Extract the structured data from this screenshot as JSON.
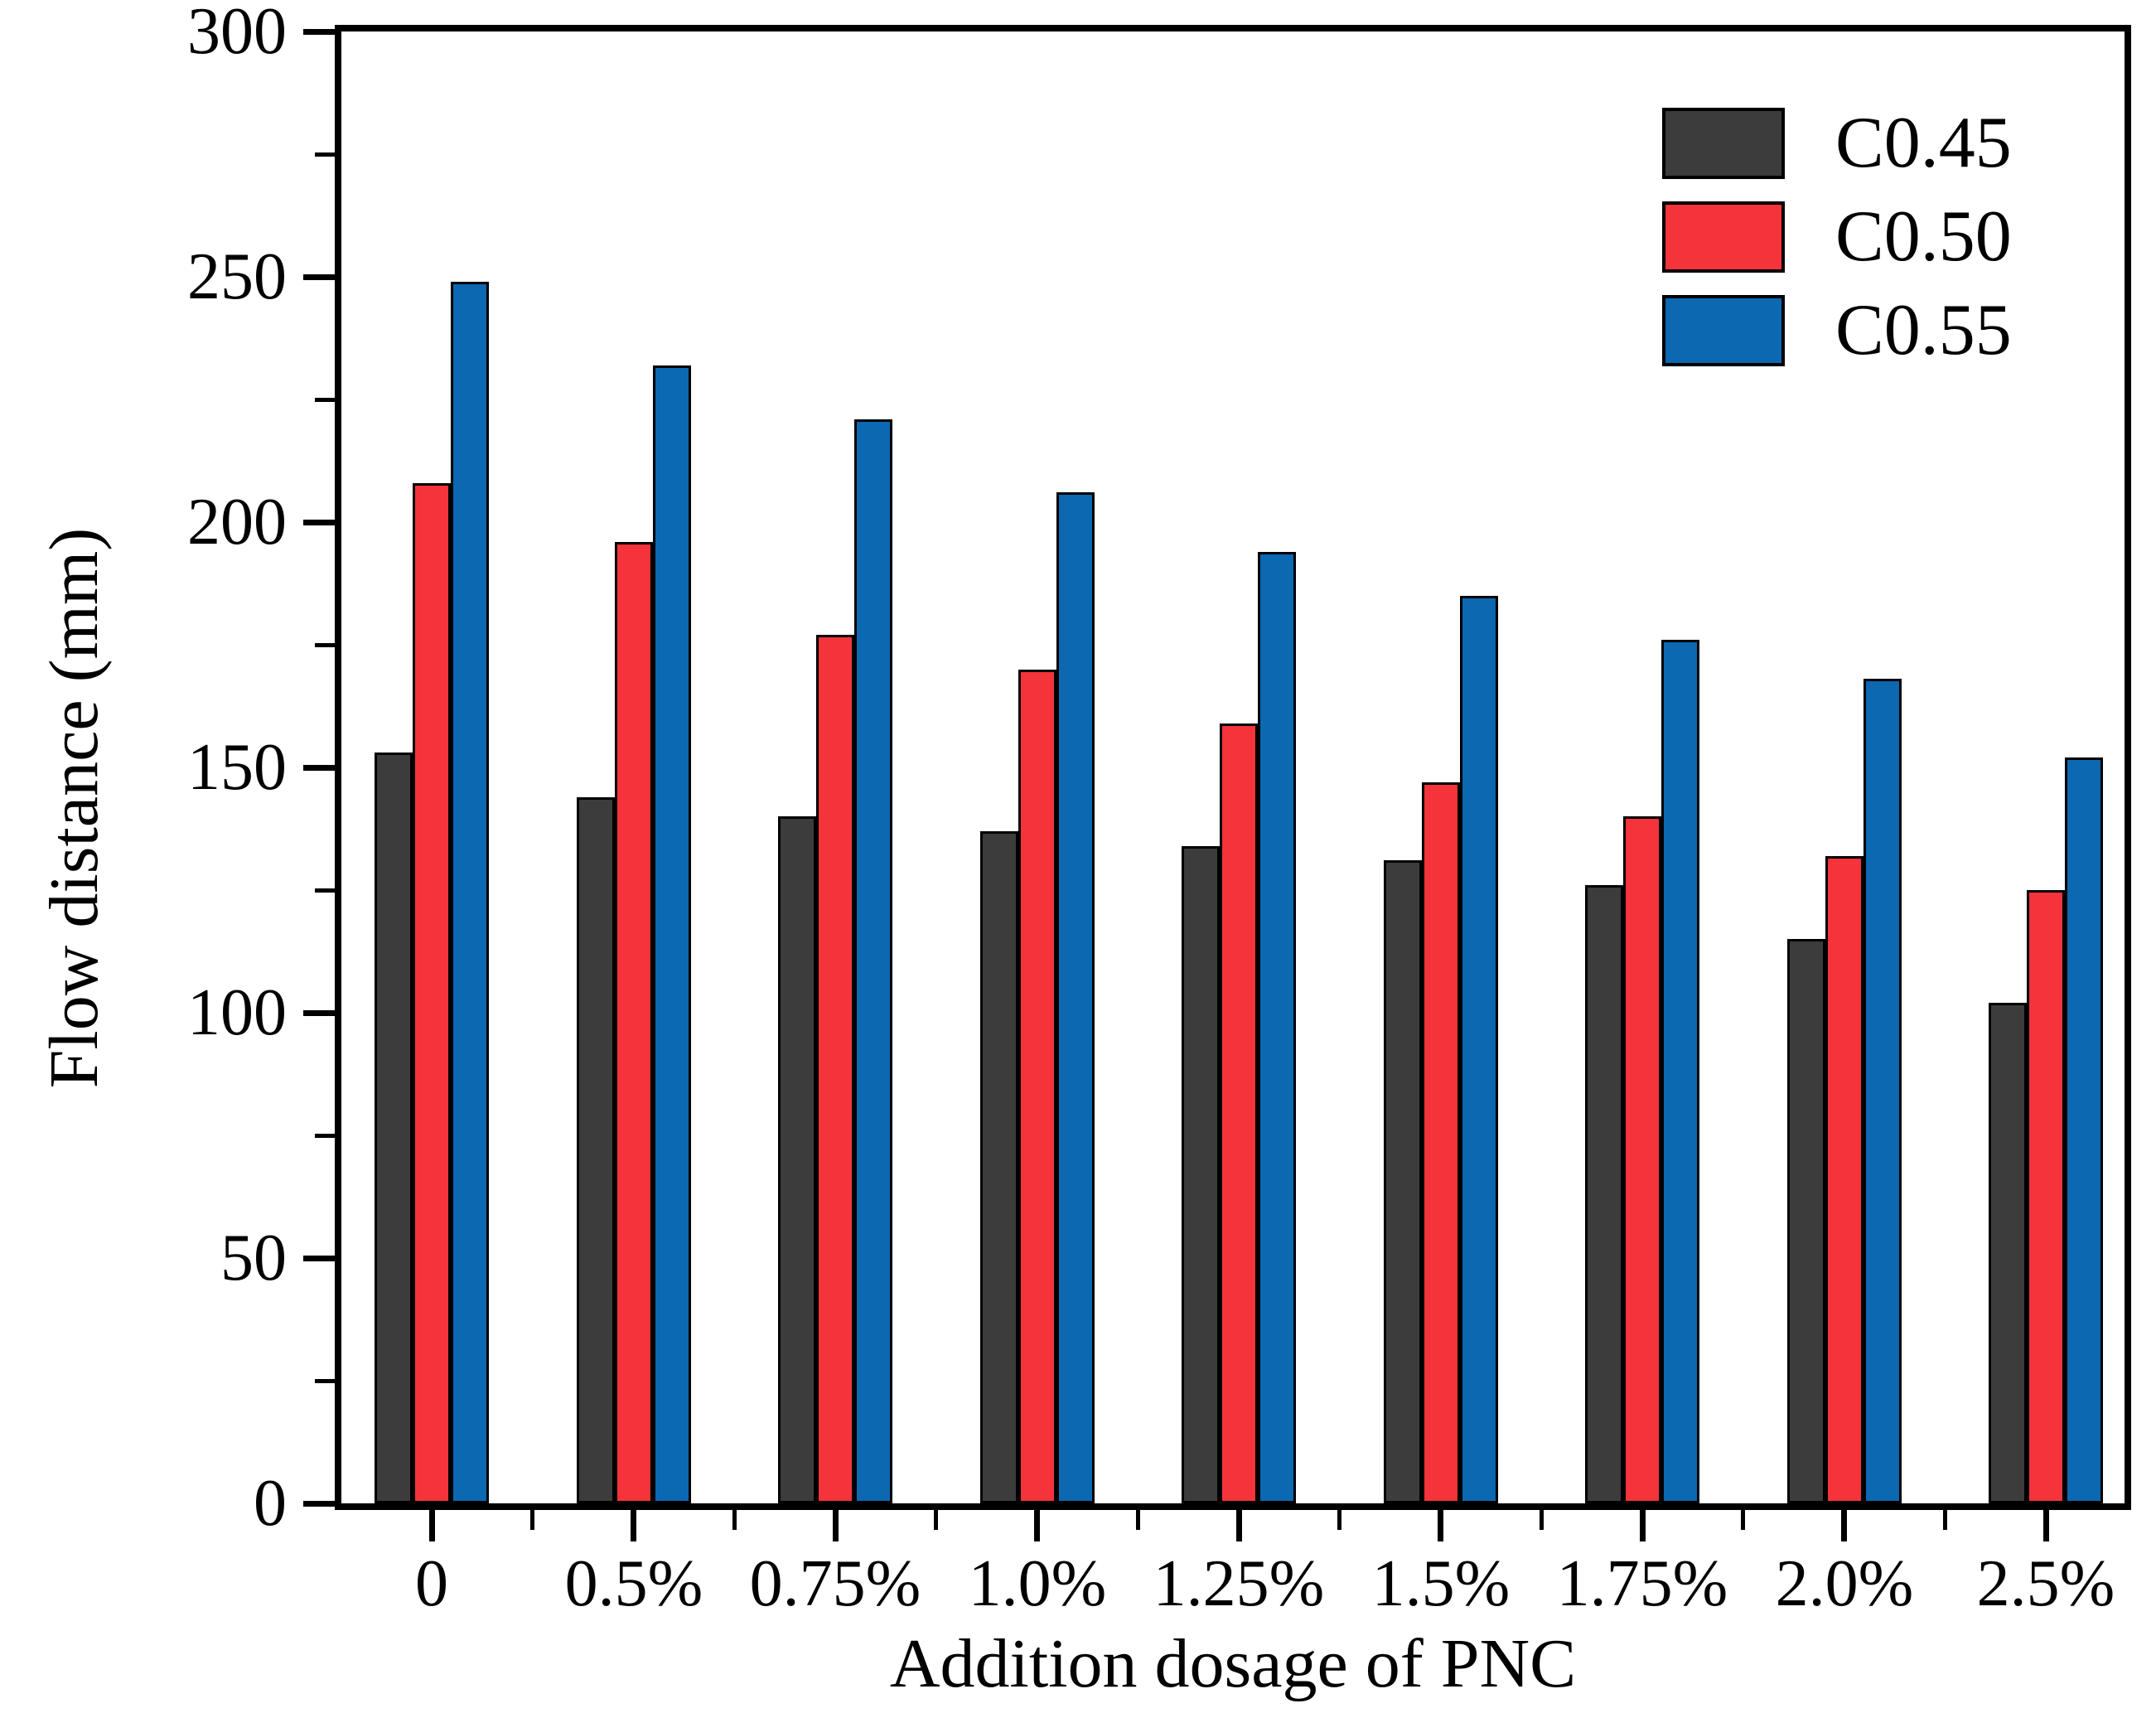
{
  "figure": {
    "background": "#ffffff",
    "frame_color": "#000000"
  },
  "chart_data": {
    "type": "bar",
    "title": "",
    "xlabel": "Addition dosage of PNC",
    "ylabel": "Flow distance (mm)",
    "categories": [
      "0",
      "0.5%",
      "0.75%",
      "1.0%",
      "1.25%",
      "1.5%",
      "1.75%",
      "2.0%",
      "2.5%"
    ],
    "series": [
      {
        "name": "C0.45",
        "color": "#3c3c3c",
        "values": [
          153,
          144,
          140,
          137,
          134,
          131,
          126,
          115,
          102
        ]
      },
      {
        "name": "C0.50",
        "color": "#f5333a",
        "values": [
          208,
          196,
          177,
          170,
          159,
          147,
          140,
          132,
          125
        ]
      },
      {
        "name": "C0.55",
        "color": "#0b68b1",
        "values": [
          249,
          232,
          221,
          206,
          194,
          185,
          176,
          168,
          152
        ]
      }
    ],
    "ylim": [
      0,
      300
    ],
    "ytick_major_step": 50,
    "ytick_minor_step": 25,
    "ytick_major_labels": [
      "0",
      "50",
      "100",
      "150",
      "200",
      "250",
      "300"
    ],
    "bar_border_color": "#000000",
    "legend_position": "top-right",
    "legend_entries": [
      "C0.45",
      "C0.50",
      "C0.55"
    ],
    "grid": false
  }
}
